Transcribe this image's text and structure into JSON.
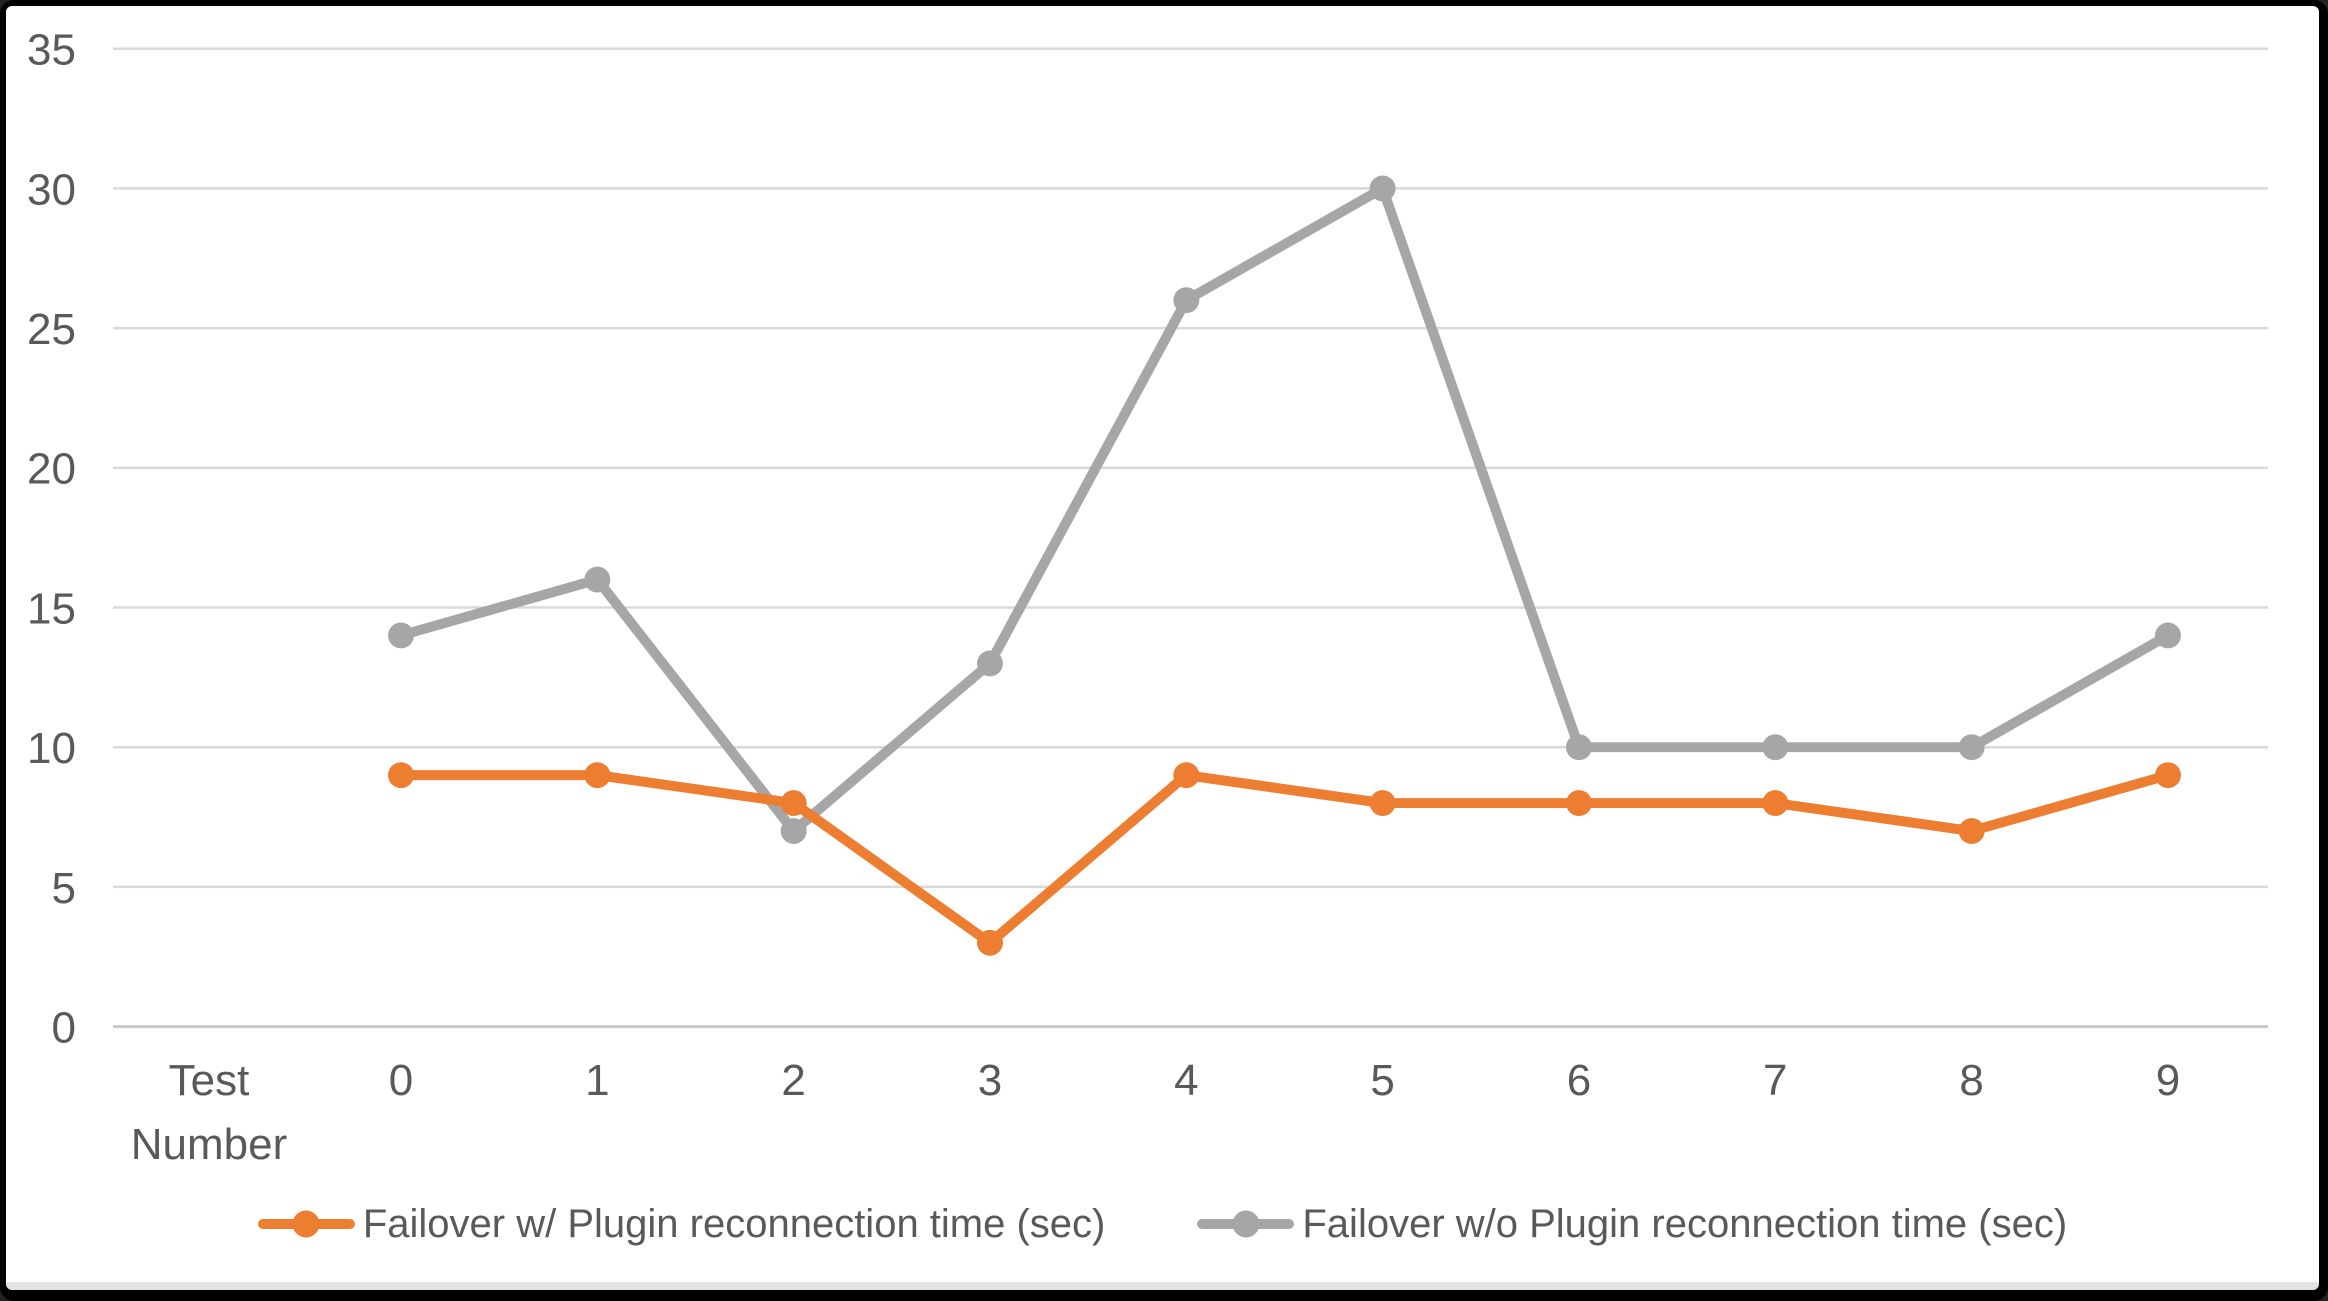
{
  "chart_data": {
    "type": "line",
    "title": "",
    "x_axis_label": "Test Number",
    "x_axis_label_lines": [
      "Test",
      "Number"
    ],
    "categories": [
      "0",
      "1",
      "2",
      "3",
      "4",
      "5",
      "6",
      "7",
      "8",
      "9"
    ],
    "series": [
      {
        "name": "Failover w/ Plugin reconnection time (sec)",
        "color": "#ED7D31",
        "values": [
          9,
          9,
          8,
          3,
          9,
          8,
          8,
          8,
          7,
          9
        ]
      },
      {
        "name": "Failover w/o Plugin reconnection time (sec)",
        "color": "#A6A6A6",
        "values": [
          14,
          16,
          7,
          13,
          26,
          30,
          10,
          10,
          10,
          14
        ]
      }
    ],
    "ylim": [
      0,
      35
    ],
    "y_ticks": [
      0,
      5,
      10,
      15,
      20,
      25,
      30,
      35
    ],
    "grid": "horizontal",
    "legend_position": "bottom",
    "colors": {
      "tick_label": "#595959",
      "gridline": "#D9D9D9",
      "axis_line": "#C9C9C9",
      "plot_background": "#FFFFFF",
      "frame": "#000000"
    }
  }
}
